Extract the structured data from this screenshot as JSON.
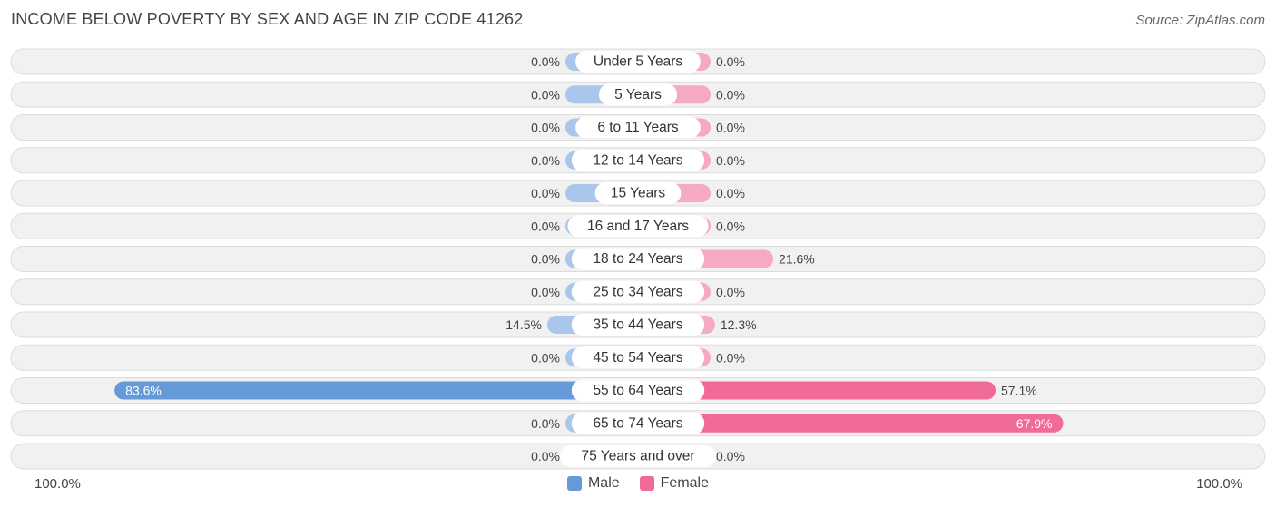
{
  "title": "INCOME BELOW POVERTY BY SEX AND AGE IN ZIP CODE 41262",
  "source": "Source: ZipAtlas.com",
  "axis": {
    "left_label": "100.0%",
    "right_label": "100.0%"
  },
  "legend": {
    "male_label": "Male",
    "female_label": "Female"
  },
  "colors": {
    "male_light": "#a9c7ea",
    "male_strong": "#6699d8",
    "female_light": "#f5a9c2",
    "female_strong": "#f06b96",
    "row_bg": "#f1f1f1",
    "row_border": "#dcdcdc"
  },
  "chart_data": {
    "type": "bar",
    "orientation": "horizontal-diverging",
    "xlim": [
      -100,
      100
    ],
    "categories": [
      "Under 5 Years",
      "5 Years",
      "6 to 11 Years",
      "12 to 14 Years",
      "15 Years",
      "16 and 17 Years",
      "18 to 24 Years",
      "25 to 34 Years",
      "35 to 44 Years",
      "45 to 54 Years",
      "55 to 64 Years",
      "65 to 74 Years",
      "75 Years and over"
    ],
    "series": [
      {
        "name": "Male",
        "values": [
          0.0,
          0.0,
          0.0,
          0.0,
          0.0,
          0.0,
          0.0,
          0.0,
          14.5,
          0.0,
          83.6,
          0.0,
          0.0
        ],
        "labels": [
          "0.0%",
          "0.0%",
          "0.0%",
          "0.0%",
          "0.0%",
          "0.0%",
          "0.0%",
          "0.0%",
          "14.5%",
          "0.0%",
          "83.6%",
          "0.0%",
          "0.0%"
        ]
      },
      {
        "name": "Female",
        "values": [
          0.0,
          0.0,
          0.0,
          0.0,
          0.0,
          0.0,
          21.6,
          0.0,
          12.3,
          0.0,
          57.1,
          67.9,
          0.0
        ],
        "labels": [
          "0.0%",
          "0.0%",
          "0.0%",
          "0.0%",
          "0.0%",
          "0.0%",
          "21.6%",
          "0.0%",
          "12.3%",
          "0.0%",
          "57.1%",
          "67.9%",
          "0.0%"
        ]
      }
    ]
  }
}
